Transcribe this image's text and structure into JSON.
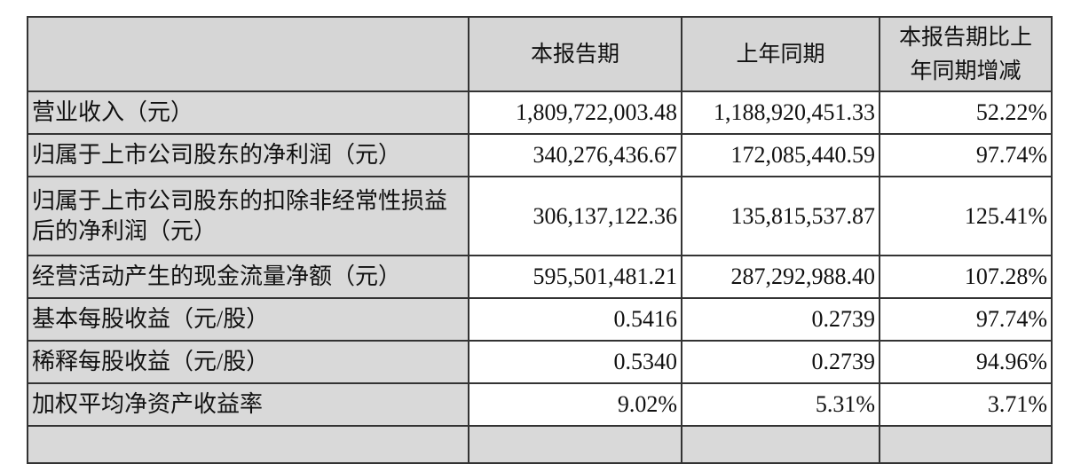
{
  "table": {
    "headers": [
      "",
      "本报告期",
      "上年同期",
      "本报告期比上年同期增减"
    ],
    "rows": [
      {
        "label": "营业收入（元）",
        "current": "1,809,722,003.48",
        "prior": "1,188,920,451.33",
        "change": "52.22%"
      },
      {
        "label": "归属于上市公司股东的净利润（元）",
        "current": "340,276,436.67",
        "prior": "172,085,440.59",
        "change": "97.74%"
      },
      {
        "label": "归属于上市公司股东的扣除非经常性损益后的净利润（元）",
        "current": "306,137,122.36",
        "prior": "135,815,537.87",
        "change": "125.41%"
      },
      {
        "label": "经营活动产生的现金流量净额（元）",
        "current": "595,501,481.21",
        "prior": "287,292,988.40",
        "change": "107.28%"
      },
      {
        "label": "基本每股收益（元/股）",
        "current": "0.5416",
        "prior": "0.2739",
        "change": "97.74%"
      },
      {
        "label": "稀释每股收益（元/股）",
        "current": "0.5340",
        "prior": "0.2739",
        "change": "94.96%"
      },
      {
        "label": "加权平均净资产收益率",
        "current": "9.02%",
        "prior": "5.31%",
        "change": "3.71%"
      }
    ]
  }
}
